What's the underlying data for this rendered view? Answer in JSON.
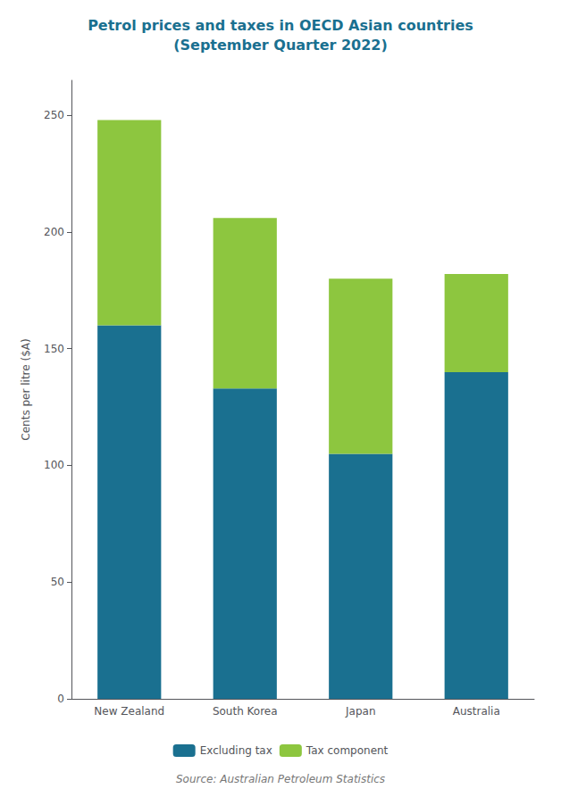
{
  "chart_data": {
    "type": "bar",
    "title": "Petrol prices and taxes in OECD Asian countries\n(September Quarter 2022)",
    "categories": [
      "New Zealand",
      "South Korea",
      "Japan",
      "Australia"
    ],
    "series": [
      {
        "name": "Excluding tax",
        "color": "#1a7090",
        "values": [
          160,
          133,
          105,
          140
        ]
      },
      {
        "name": "Tax component",
        "color": "#8dc63f",
        "values": [
          88,
          73,
          75,
          42
        ]
      }
    ],
    "stacked": true,
    "ylabel": "Cents per litre ($A)",
    "ylim": [
      0,
      265
    ],
    "yticks": [
      0,
      50,
      100,
      150,
      200,
      250
    ],
    "grid": false,
    "legend": "bottom",
    "annotations": [
      "Source: Australian Petroleum Statistics"
    ]
  }
}
